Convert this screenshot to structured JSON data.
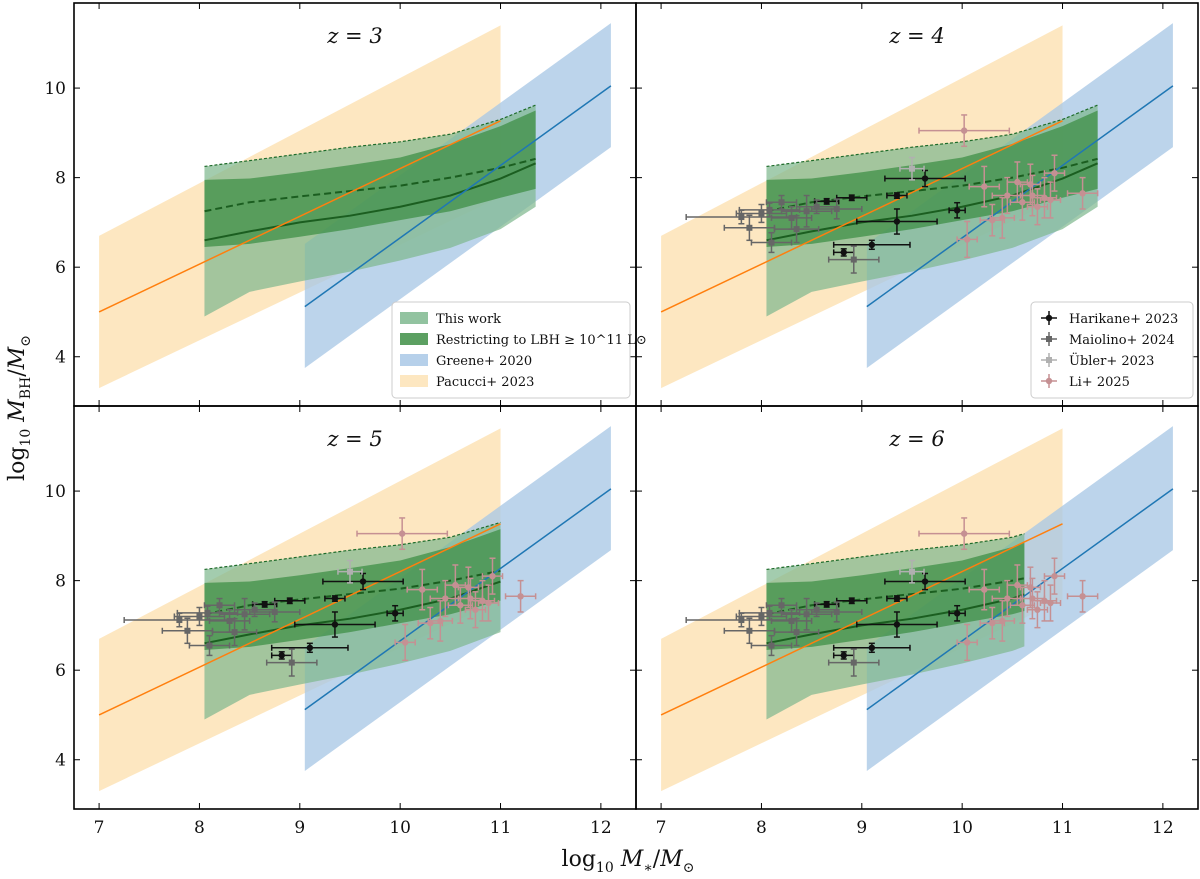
{
  "chart_data": {
    "type": "multi-panel band + errorbar plot",
    "xlabel": "log10 M*/M⊙",
    "ylabel": "log10 MBH/M⊙",
    "xlim": [
      6.75,
      12.35
    ],
    "ylim": [
      2.9,
      11.9
    ],
    "xticks": [
      "7",
      "8",
      "9",
      "10",
      "11",
      "12"
    ],
    "yticks": [
      "4",
      "6",
      "8",
      "10"
    ],
    "panels": [
      {
        "id": "z3",
        "title": "z = 3",
        "work_x_max": 11.35,
        "show_obs": false,
        "legend": [
          "This work",
          "Restricting to LBH ≥ 10^11 L⊙",
          "Greene+ 2020",
          "Pacucci+ 2023"
        ]
      },
      {
        "id": "z4",
        "title": "z = 4",
        "work_x_max": 11.35,
        "show_obs": true,
        "legend": [
          "Harikane+ 2023",
          "Maiolino+ 2024",
          "Übler+ 2023",
          "Li+ 2025"
        ]
      },
      {
        "id": "z5",
        "title": "z = 5",
        "work_x_max": 11.0,
        "show_obs": true
      },
      {
        "id": "z6",
        "title": "z = 6",
        "work_x_max": 10.62,
        "show_obs": true
      }
    ],
    "series": [
      {
        "name": "Pacucci+ 2023",
        "color": "#fde3b6",
        "line_color": "#ff7f0e",
        "x_range": [
          7.0,
          11.0
        ],
        "line": [
          5.0,
          9.27
        ],
        "lower": [
          3.3,
          7.57
        ],
        "upper": [
          6.7,
          11.4
        ]
      },
      {
        "name": "Greene+ 2020",
        "color": "#a9c8e6",
        "line_color": "#1f77b4",
        "x_range": [
          9.05,
          12.1
        ],
        "line": [
          5.12,
          10.05
        ],
        "lower": [
          3.75,
          8.68
        ],
        "upper": [
          6.52,
          11.45
        ]
      },
      {
        "name": "This work",
        "color": "#7fb98f",
        "x": [
          8.05,
          8.5,
          9.0,
          9.5,
          10.0,
          10.5,
          11.0,
          11.35
        ],
        "upper": [
          8.25,
          8.38,
          8.53,
          8.68,
          8.8,
          8.97,
          9.3,
          9.62
        ],
        "lower": [
          4.9,
          5.45,
          5.68,
          5.9,
          6.15,
          6.43,
          6.85,
          7.35
        ]
      },
      {
        "name": "Restricting to LBH ≥ 10^11 L⊙",
        "color": "#3f8f47",
        "x": [
          8.05,
          8.5,
          9.0,
          9.5,
          10.0,
          10.5,
          11.0,
          11.35
        ],
        "upper": [
          7.95,
          7.98,
          8.12,
          8.28,
          8.45,
          8.75,
          9.15,
          9.5
        ],
        "lower": [
          6.45,
          6.52,
          6.68,
          6.85,
          7.05,
          7.25,
          7.55,
          7.75
        ],
        "median": [
          7.25,
          7.45,
          7.58,
          7.7,
          7.82,
          8.0,
          8.22,
          8.42
        ],
        "restricted_median": [
          6.6,
          6.8,
          7.0,
          7.15,
          7.35,
          7.6,
          7.98,
          8.32
        ]
      }
    ],
    "observations": [
      {
        "name": "Harikane+ 2023",
        "color": "#111111",
        "marker": "circle",
        "points": [
          [
            9.63,
            7.98,
            0.4,
            0.18
          ],
          [
            9.35,
            7.6,
            0.1,
            0.06
          ],
          [
            9.95,
            7.27,
            0.08,
            0.17
          ],
          [
            9.35,
            7.02,
            0.4,
            0.28
          ],
          [
            9.1,
            6.5,
            0.38,
            0.1
          ],
          [
            8.82,
            6.33,
            0.1,
            0.08
          ],
          [
            8.65,
            7.47,
            0.12,
            0.06
          ],
          [
            8.9,
            7.55,
            0.15,
            0.06
          ]
        ]
      },
      {
        "name": "Maiolino+ 2024",
        "color": "#666666",
        "marker": "square",
        "points": [
          [
            7.8,
            7.12,
            0.55,
            0.15
          ],
          [
            7.88,
            6.88,
            0.25,
            0.28
          ],
          [
            8.08,
            7.28,
            0.3,
            0.15
          ],
          [
            8.1,
            6.55,
            0.2,
            0.22
          ],
          [
            8.35,
            6.85,
            0.22,
            0.3
          ],
          [
            8.45,
            7.25,
            0.25,
            0.35
          ],
          [
            8.55,
            7.35,
            0.2,
            0.15
          ],
          [
            8.92,
            6.17,
            0.25,
            0.3
          ],
          [
            8.2,
            7.45,
            0.15,
            0.15
          ],
          [
            8.75,
            7.3,
            0.25,
            0.22
          ],
          [
            8.0,
            7.2,
            0.25,
            0.2
          ],
          [
            8.3,
            7.1,
            0.2,
            0.25
          ]
        ]
      },
      {
        "name": "Übler+ 2023",
        "color": "#b0b0b0",
        "marker": "square",
        "points": [
          [
            9.5,
            8.2,
            0.12,
            0.25
          ]
        ]
      },
      {
        "name": "Li+ 2025",
        "color": "#c59093",
        "marker": "circle",
        "points": [
          [
            10.02,
            9.05,
            0.45,
            0.35
          ],
          [
            10.22,
            7.8,
            0.15,
            0.45
          ],
          [
            10.4,
            7.1,
            0.12,
            0.45
          ],
          [
            10.05,
            6.62,
            0.1,
            0.4
          ],
          [
            10.45,
            7.6,
            0.15,
            0.4
          ],
          [
            10.55,
            7.9,
            0.1,
            0.45
          ],
          [
            10.6,
            7.45,
            0.12,
            0.4
          ],
          [
            10.68,
            7.85,
            0.1,
            0.45
          ],
          [
            10.7,
            7.6,
            0.12,
            0.45
          ],
          [
            10.75,
            7.35,
            0.1,
            0.4
          ],
          [
            10.82,
            7.55,
            0.12,
            0.45
          ],
          [
            10.88,
            7.5,
            0.1,
            0.4
          ],
          [
            10.92,
            8.1,
            0.1,
            0.4
          ],
          [
            11.2,
            7.65,
            0.15,
            0.35
          ],
          [
            10.3,
            7.05,
            0.12,
            0.35
          ]
        ]
      }
    ]
  }
}
